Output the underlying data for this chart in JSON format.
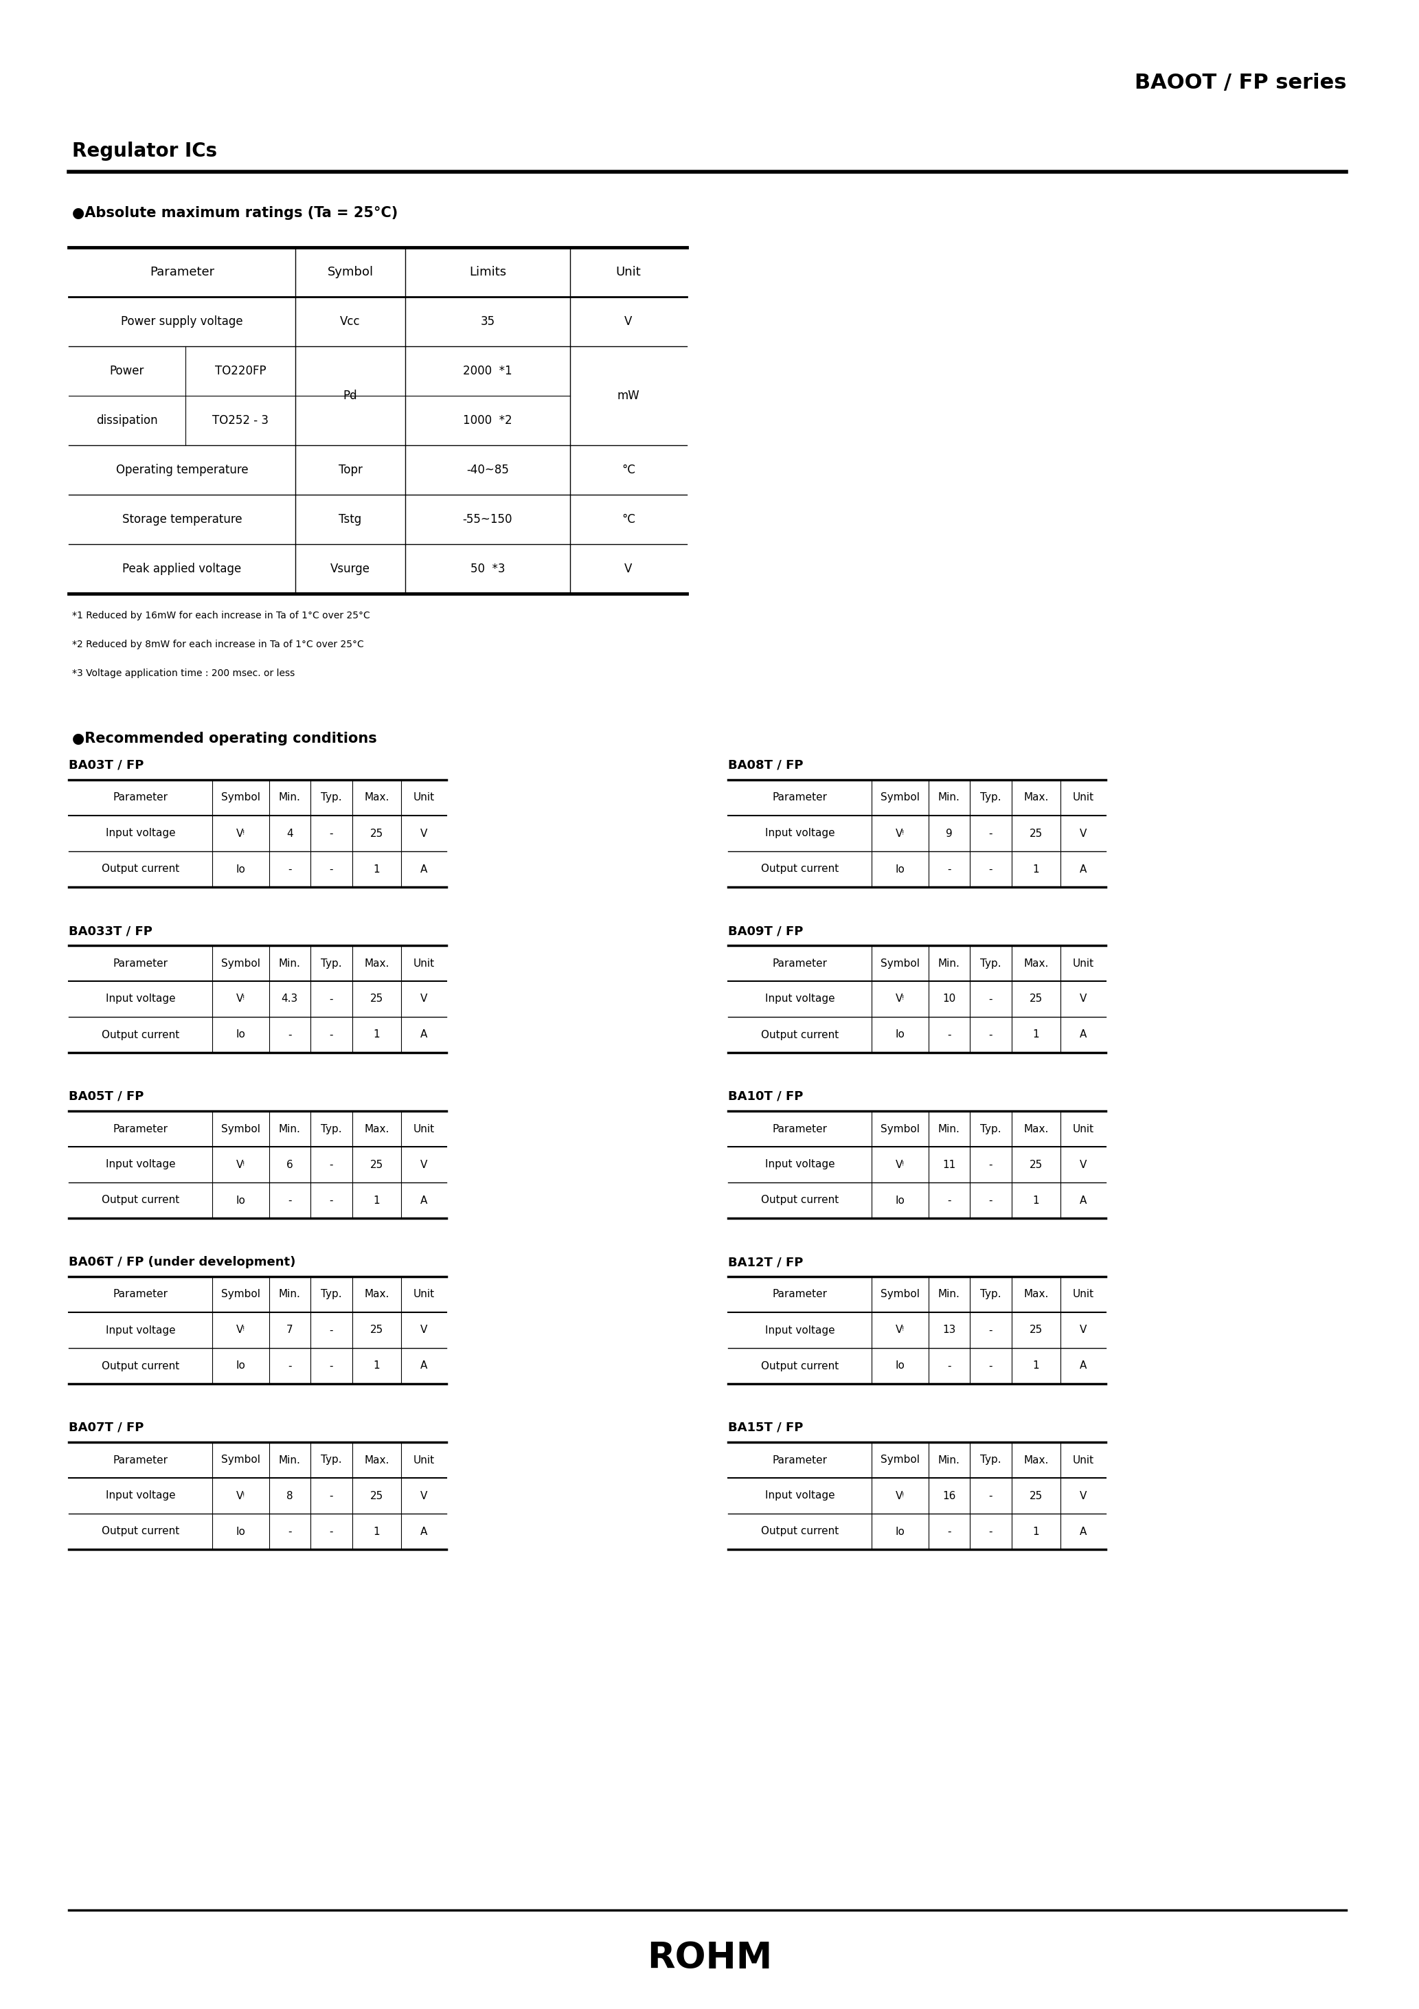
{
  "page_title": "BAOOT / FP series",
  "section1_title": "Regulator ICs",
  "abs_max_title": "●Absolute maximum ratings (Ta = 25°C)",
  "abs_max_notes": [
    "*1 Reduced by 16mW for each increase in Ta of 1°C over 25°C",
    "*2 Reduced by 8mW for each increase in Ta of 1°C over 25°C",
    "*3 Voltage application time : 200 msec. or less"
  ],
  "rec_op_title": "●Recommended operating conditions",
  "rec_op_headers": [
    "Parameter",
    "Symbol",
    "Min.",
    "Typ.",
    "Max.",
    "Unit"
  ],
  "rec_tables_left": [
    {
      "title": "BA03T / FP",
      "rows": [
        [
          "Input voltage",
          "Vᵎ",
          "4",
          "-",
          "25",
          "V"
        ],
        [
          "Output current",
          "Io",
          "-",
          "-",
          "1",
          "A"
        ]
      ]
    },
    {
      "title": "BA033T / FP",
      "rows": [
        [
          "Input voltage",
          "Vᵎ",
          "4.3",
          "-",
          "25",
          "V"
        ],
        [
          "Output current",
          "Io",
          "-",
          "-",
          "1",
          "A"
        ]
      ]
    },
    {
      "title": "BA05T / FP",
      "rows": [
        [
          "Input voltage",
          "Vᵎ",
          "6",
          "-",
          "25",
          "V"
        ],
        [
          "Output current",
          "Io",
          "-",
          "-",
          "1",
          "A"
        ]
      ]
    },
    {
      "title": "BA06T / FP (under development)",
      "rows": [
        [
          "Input voltage",
          "Vᵎ",
          "7",
          "-",
          "25",
          "V"
        ],
        [
          "Output current",
          "Io",
          "-",
          "-",
          "1",
          "A"
        ]
      ]
    },
    {
      "title": "BA07T / FP",
      "rows": [
        [
          "Input voltage",
          "Vᵎ",
          "8",
          "-",
          "25",
          "V"
        ],
        [
          "Output current",
          "Io",
          "-",
          "-",
          "1",
          "A"
        ]
      ]
    }
  ],
  "rec_tables_right": [
    {
      "title": "BA08T / FP",
      "rows": [
        [
          "Input voltage",
          "Vᵎ",
          "9",
          "-",
          "25",
          "V"
        ],
        [
          "Output current",
          "Io",
          "-",
          "-",
          "1",
          "A"
        ]
      ]
    },
    {
      "title": "BA09T / FP",
      "rows": [
        [
          "Input voltage",
          "Vᵎ",
          "10",
          "-",
          "25",
          "V"
        ],
        [
          "Output current",
          "Io",
          "-",
          "-",
          "1",
          "A"
        ]
      ]
    },
    {
      "title": "BA10T / FP",
      "rows": [
        [
          "Input voltage",
          "Vᵎ",
          "11",
          "-",
          "25",
          "V"
        ],
        [
          "Output current",
          "Io",
          "-",
          "-",
          "1",
          "A"
        ]
      ]
    },
    {
      "title": "BA12T / FP",
      "rows": [
        [
          "Input voltage",
          "Vᵎ",
          "13",
          "-",
          "25",
          "V"
        ],
        [
          "Output current",
          "Io",
          "-",
          "-",
          "1",
          "A"
        ]
      ]
    },
    {
      "title": "BA15T / FP",
      "rows": [
        [
          "Input voltage",
          "Vᵎ",
          "16",
          "-",
          "25",
          "V"
        ],
        [
          "Output current",
          "Io",
          "-",
          "-",
          "1",
          "A"
        ]
      ]
    }
  ],
  "bg_color": "#ffffff"
}
